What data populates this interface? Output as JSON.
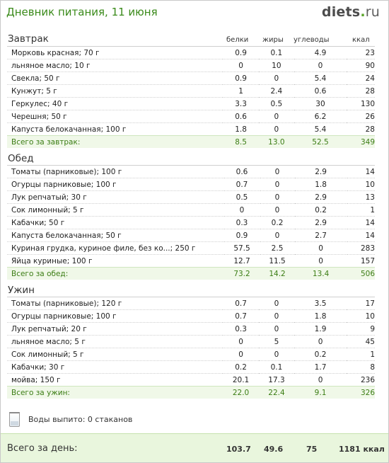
{
  "header": {
    "title": "Дневник питания, 11 июня",
    "logo_main": "diets",
    "logo_dot": ".",
    "logo_tld": "ru"
  },
  "columns": {
    "protein": "белки",
    "fat": "жиры",
    "carbs": "углеводы",
    "kcal": "ккал"
  },
  "meals": [
    {
      "title": "Завтрак",
      "items": [
        {
          "name": "Морковь красная; 70 г",
          "protein": "0.9",
          "fat": "0.1",
          "carbs": "4.9",
          "kcal": "23"
        },
        {
          "name": "льняное масло; 10 г",
          "protein": "0",
          "fat": "10",
          "carbs": "0",
          "kcal": "90"
        },
        {
          "name": "Свекла; 50 г",
          "protein": "0.9",
          "fat": "0",
          "carbs": "5.4",
          "kcal": "24"
        },
        {
          "name": "Кунжут; 5 г",
          "protein": "1",
          "fat": "2.4",
          "carbs": "0.6",
          "kcal": "28"
        },
        {
          "name": "Геркулес; 40 г",
          "protein": "3.3",
          "fat": "0.5",
          "carbs": "30",
          "kcal": "130"
        },
        {
          "name": "Черешня; 50 г",
          "protein": "0.6",
          "fat": "0",
          "carbs": "6.2",
          "kcal": "26"
        },
        {
          "name": "Капуста белокачанная; 100 г",
          "protein": "1.8",
          "fat": "0",
          "carbs": "5.4",
          "kcal": "28"
        }
      ],
      "total": {
        "label": "Всего за завтрак:",
        "protein": "8.5",
        "fat": "13.0",
        "carbs": "52.5",
        "kcal": "349"
      }
    },
    {
      "title": "Обед",
      "items": [
        {
          "name": "Томаты (парниковые); 100 г",
          "protein": "0.6",
          "fat": "0",
          "carbs": "2.9",
          "kcal": "14"
        },
        {
          "name": "Огурцы парниковые; 100 г",
          "protein": "0.7",
          "fat": "0",
          "carbs": "1.8",
          "kcal": "10"
        },
        {
          "name": "Лук репчатый; 30 г",
          "protein": "0.5",
          "fat": "0",
          "carbs": "2.9",
          "kcal": "13"
        },
        {
          "name": "Сок лимонный; 5 г",
          "protein": "0",
          "fat": "0",
          "carbs": "0.2",
          "kcal": "1"
        },
        {
          "name": "Кабачки; 50 г",
          "protein": "0.3",
          "fat": "0.2",
          "carbs": "2.9",
          "kcal": "14"
        },
        {
          "name": "Капуста белокачанная; 50 г",
          "protein": "0.9",
          "fat": "0",
          "carbs": "2.7",
          "kcal": "14"
        },
        {
          "name": "Куриная грудка, куриное филе, без ко...; 250 г",
          "protein": "57.5",
          "fat": "2.5",
          "carbs": "0",
          "kcal": "283"
        },
        {
          "name": "Яйца куриные; 100 г",
          "protein": "12.7",
          "fat": "11.5",
          "carbs": "0",
          "kcal": "157"
        }
      ],
      "total": {
        "label": "Всего за обед:",
        "protein": "73.2",
        "fat": "14.2",
        "carbs": "13.4",
        "kcal": "506"
      }
    },
    {
      "title": "Ужин",
      "items": [
        {
          "name": "Томаты (парниковые); 120 г",
          "protein": "0.7",
          "fat": "0",
          "carbs": "3.5",
          "kcal": "17"
        },
        {
          "name": "Огурцы парниковые; 100 г",
          "protein": "0.7",
          "fat": "0",
          "carbs": "1.8",
          "kcal": "10"
        },
        {
          "name": "Лук репчатый; 20 г",
          "protein": "0.3",
          "fat": "0",
          "carbs": "1.9",
          "kcal": "9"
        },
        {
          "name": "льняное масло; 5 г",
          "protein": "0",
          "fat": "5",
          "carbs": "0",
          "kcal": "45"
        },
        {
          "name": "Сок лимонный; 5 г",
          "protein": "0",
          "fat": "0",
          "carbs": "0.2",
          "kcal": "1"
        },
        {
          "name": "Кабачки; 30 г",
          "protein": "0.2",
          "fat": "0.1",
          "carbs": "1.7",
          "kcal": "8"
        },
        {
          "name": "мойва; 150 г",
          "protein": "20.1",
          "fat": "17.3",
          "carbs": "0",
          "kcal": "236"
        }
      ],
      "total": {
        "label": "Всего за ужин:",
        "protein": "22.0",
        "fat": "22.4",
        "carbs": "9.1",
        "kcal": "326"
      }
    }
  ],
  "water": {
    "icon": "water-glass-icon",
    "label": "Воды выпито:",
    "value": "0 стаканов"
  },
  "day_total": {
    "label": "Всего за день:",
    "protein": "103.7",
    "fat": "49.6",
    "carbs": "75",
    "kcal": "1181 ккал"
  },
  "colors": {
    "accent_green": "#3a8a1a",
    "total_row_bg": "#f0f8e8",
    "day_total_bg": "#e9f6dd"
  }
}
